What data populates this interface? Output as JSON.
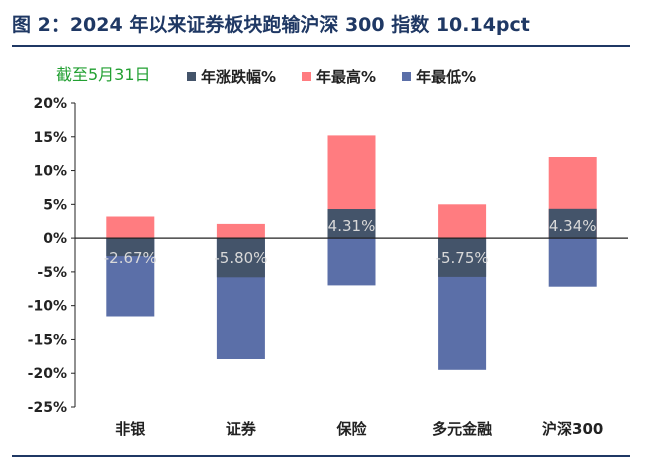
{
  "header": {
    "title": "图 2：2024 年以来证券板块跑输沪深 300 指数 10.14pct",
    "note": "截至5月31日"
  },
  "colors": {
    "change": "#44546a",
    "high": "#ff7c80",
    "low": "#5b6fa8",
    "title": "#1f3864"
  },
  "chart_data": {
    "type": "bar",
    "title": "图 2：2024 年以来证券板块跑输沪深 300 指数 10.14pct",
    "annotation": "截至5月31日",
    "categories": [
      "非银",
      "证券",
      "保险",
      "多元金融",
      "沪深300"
    ],
    "series": [
      {
        "name": "年涨跌幅%",
        "values": [
          -2.67,
          -5.8,
          4.31,
          -5.75,
          4.34
        ],
        "data_labels": [
          "-2.67%",
          "-5.80%",
          "4.31%",
          "-5.75%",
          "4.34%"
        ]
      },
      {
        "name": "年最高%",
        "values": [
          3.2,
          2.1,
          15.2,
          5.0,
          12.0
        ]
      },
      {
        "name": "年最低%",
        "values": [
          -11.6,
          -17.9,
          -7.0,
          -19.5,
          -7.2
        ]
      }
    ],
    "ylim": [
      -25,
      20
    ],
    "yticks": [
      20,
      15,
      10,
      5,
      0,
      -5,
      -10,
      -15,
      -20,
      -25
    ],
    "ytick_labels": [
      "20%",
      "15%",
      "10%",
      "5%",
      "0%",
      "-5%",
      "-10%",
      "-15%",
      "-20%",
      "-25%"
    ],
    "legend_position": "top",
    "grid": false
  }
}
